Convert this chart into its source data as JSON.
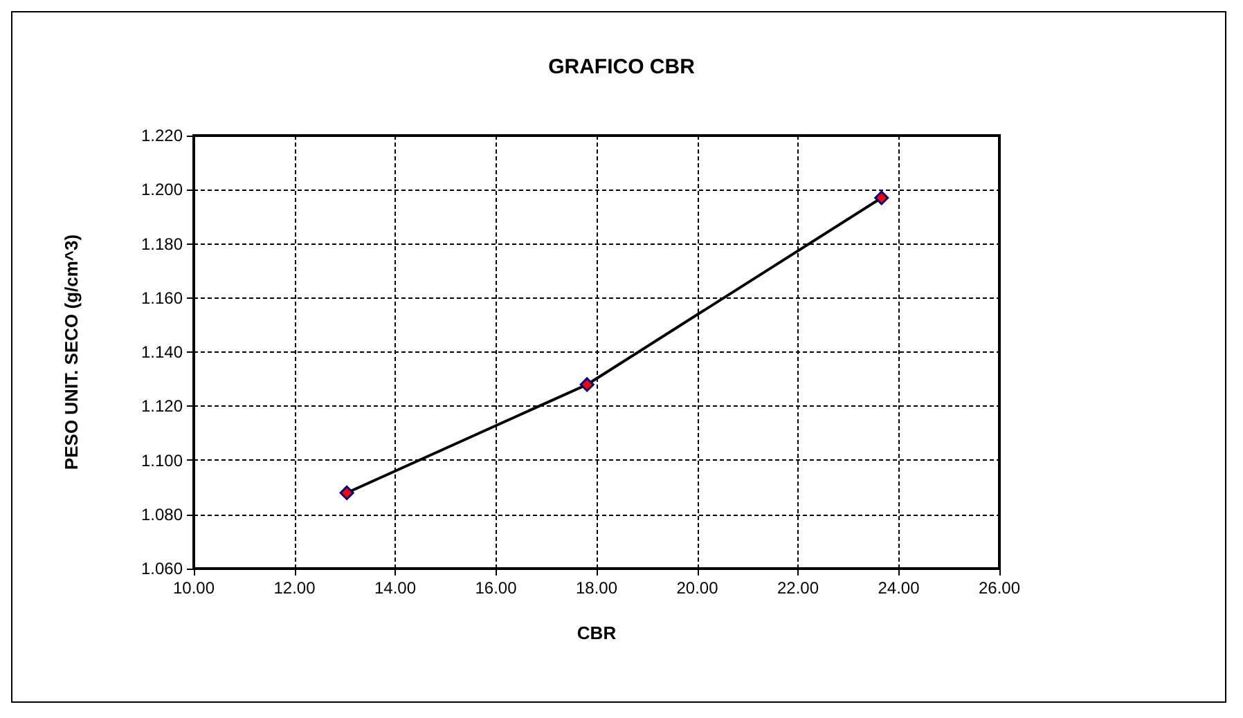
{
  "chart_data": {
    "type": "line",
    "title": "GRAFICO CBR",
    "xlabel": "CBR",
    "ylabel": "PESO UNIT. SECO (g/cm^3)",
    "x": [
      13.04,
      17.81,
      23.66
    ],
    "series": [
      {
        "color": "#ff0000",
        "values": [
          1.088,
          1.128,
          1.197
        ]
      }
    ],
    "xlim": [
      10,
      26
    ],
    "xticks": [
      {
        "value": 10,
        "label": "10.00"
      },
      {
        "value": 12,
        "label": "12.00"
      },
      {
        "value": 14,
        "label": "14.00"
      },
      {
        "value": 16,
        "label": "16.00"
      },
      {
        "value": 18,
        "label": "18.00"
      },
      {
        "value": 20,
        "label": "20.00"
      },
      {
        "value": 22,
        "label": "22.00"
      },
      {
        "value": 24,
        "label": "24.00"
      },
      {
        "value": 26,
        "label": "26.00"
      }
    ],
    "ylim": [
      1.06,
      1.22
    ],
    "yticks": [
      {
        "value": 1.06,
        "label": "1.060"
      },
      {
        "value": 1.08,
        "label": "1.080"
      },
      {
        "value": 1.1,
        "label": "1.100"
      },
      {
        "value": 1.12,
        "label": "1.120"
      },
      {
        "value": 1.14,
        "label": "1.140"
      },
      {
        "value": 1.16,
        "label": "1.160"
      },
      {
        "value": 1.18,
        "label": "1.180"
      },
      {
        "value": 1.2,
        "label": "1.200"
      },
      {
        "value": 1.22,
        "label": "1.220"
      }
    ],
    "grid": true,
    "marker": "diamond",
    "line_style": "solid"
  }
}
